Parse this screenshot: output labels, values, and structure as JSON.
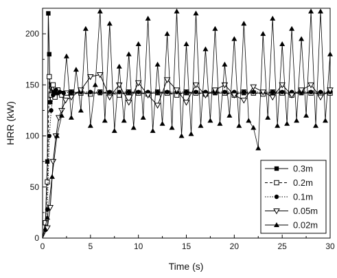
{
  "chart_data": {
    "type": "line",
    "title": "",
    "xlabel": "Time (s)",
    "ylabel": "HRR (kW)",
    "xlim": [
      0,
      30
    ],
    "ylim": [
      0,
      225
    ],
    "xticks": [
      0,
      5,
      10,
      15,
      20,
      25,
      30
    ],
    "xtick_labels": [
      "0",
      "5",
      "10",
      "15",
      "20",
      "25",
      "30"
    ],
    "yticks": [
      0,
      50,
      100,
      150,
      200
    ],
    "ytick_labels": [
      "0",
      "50",
      "100",
      "150",
      "200"
    ],
    "grid": false,
    "legend_position": "bottom-right",
    "series": [
      {
        "name": "0.3m",
        "marker": "square",
        "line_style": "solid",
        "x": [
          0,
          0.3,
          0.5,
          0.6,
          0.7,
          0.8,
          0.9,
          1.0,
          1.2,
          1.5,
          2,
          3,
          4,
          5,
          6,
          7,
          8,
          9,
          10,
          11,
          12,
          13,
          14,
          15,
          16,
          17,
          18,
          19,
          20,
          21,
          22,
          23,
          24,
          25,
          26,
          27,
          28,
          29,
          30
        ],
        "y": [
          0,
          15,
          75,
          220,
          180,
          133,
          150,
          140,
          143,
          142,
          142,
          142,
          142,
          142,
          142,
          142,
          142,
          142,
          142,
          142,
          142,
          142,
          142,
          142,
          142,
          142,
          142,
          142,
          142,
          142,
          142,
          142,
          142,
          142,
          142,
          142,
          142,
          142,
          142
        ]
      },
      {
        "name": "0.2m",
        "marker": "square-open",
        "line_style": "dashed",
        "x": [
          0,
          0.3,
          0.5,
          0.7,
          0.9,
          1.1,
          1.3,
          1.6,
          2,
          2.5,
          3,
          4,
          5,
          6,
          7,
          8,
          9,
          10,
          11,
          12,
          13,
          14,
          15,
          16,
          17,
          18,
          19,
          20,
          21,
          22,
          23,
          24,
          25,
          26,
          27,
          28,
          29,
          30
        ],
        "y": [
          0,
          15,
          55,
          158,
          140,
          150,
          138,
          145,
          140,
          142,
          143,
          142,
          141,
          143,
          142,
          140,
          143,
          142,
          141,
          143,
          142,
          140,
          143,
          142,
          141,
          143,
          142,
          140,
          143,
          142,
          141,
          143,
          142,
          140,
          143,
          142,
          141,
          142
        ]
      },
      {
        "name": "0.1m",
        "marker": "circle",
        "line_style": "dotted",
        "x": [
          0,
          0.3,
          0.5,
          0.7,
          0.9,
          1.1,
          1.4,
          1.8,
          2.2,
          3,
          4,
          5,
          6,
          7,
          8,
          9,
          10,
          11,
          12,
          13,
          14,
          15,
          16,
          17,
          18,
          19,
          20,
          21,
          22,
          23,
          24,
          25,
          26,
          27,
          28,
          29,
          30
        ],
        "y": [
          0,
          8,
          28,
          100,
          125,
          140,
          145,
          143,
          142,
          143,
          143,
          143,
          143,
          143,
          143,
          143,
          143,
          143,
          143,
          143,
          143,
          143,
          143,
          143,
          143,
          143,
          143,
          143,
          143,
          143,
          143,
          143,
          143,
          143,
          143,
          143,
          143
        ]
      },
      {
        "name": "0.05m",
        "marker": "triangle-down-open",
        "line_style": "solid",
        "x": [
          0,
          0.5,
          0.8,
          1.1,
          1.4,
          1.7,
          2,
          2.4,
          3,
          4,
          5,
          6,
          7,
          8,
          9,
          10,
          11,
          12,
          13,
          14,
          15,
          16,
          17,
          18,
          19,
          20,
          21,
          22,
          23,
          24,
          25,
          26,
          27,
          28,
          29,
          30
        ],
        "y": [
          0,
          10,
          30,
          75,
          100,
          118,
          125,
          135,
          138,
          145,
          158,
          160,
          138,
          150,
          133,
          152,
          140,
          130,
          155,
          145,
          133,
          150,
          140,
          145,
          150,
          140,
          135,
          148,
          143,
          138,
          150,
          140,
          145,
          150,
          138,
          145
        ]
      },
      {
        "name": "0.02m",
        "marker": "triangle-up",
        "line_style": "solid",
        "x": [
          0,
          0.5,
          1.0,
          1.5,
          2.0,
          2.5,
          3.0,
          3.5,
          4.0,
          4.5,
          5.0,
          5.5,
          6.0,
          6.5,
          7.0,
          7.5,
          8.0,
          8.5,
          9.0,
          9.5,
          10.0,
          10.5,
          11.0,
          11.5,
          12.0,
          12.5,
          13.0,
          13.5,
          14.0,
          14.5,
          15.0,
          15.5,
          16.0,
          16.5,
          17.0,
          17.5,
          18.0,
          18.5,
          19.0,
          19.5,
          20.0,
          20.5,
          21.0,
          21.5,
          22.0,
          22.5,
          23.0,
          23.5,
          24.0,
          24.5,
          25.0,
          25.5,
          26.0,
          26.5,
          27.0,
          27.5,
          28.0,
          28.5,
          29.0,
          29.5,
          30.0
        ],
        "y": [
          0,
          20,
          60,
          100,
          120,
          178,
          118,
          165,
          125,
          205,
          110,
          150,
          222,
          115,
          210,
          105,
          168,
          115,
          180,
          108,
          190,
          118,
          215,
          105,
          170,
          112,
          200,
          108,
          222,
          100,
          190,
          102,
          220,
          110,
          185,
          115,
          205,
          112,
          170,
          120,
          195,
          110,
          210,
          115,
          108,
          88,
          200,
          118,
          215,
          110,
          190,
          112,
          205,
          115,
          195,
          120,
          222,
          110,
          222,
          115,
          180
        ]
      }
    ]
  }
}
